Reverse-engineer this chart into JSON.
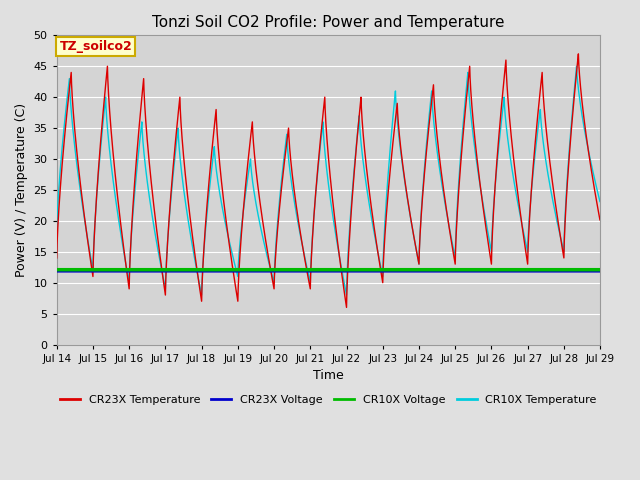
{
  "title": "Tonzi Soil CO2 Profile: Power and Temperature",
  "xlabel": "Time",
  "ylabel": "Power (V) / Temperature (C)",
  "ylim": [
    0,
    50
  ],
  "yticks": [
    0,
    5,
    10,
    15,
    20,
    25,
    30,
    35,
    40,
    45,
    50
  ],
  "n_days": 15,
  "xtick_labels": [
    "Jul 14",
    "Jul 15",
    "Jul 16",
    "Jul 17",
    "Jul 18",
    "Jul 19",
    "Jul 20",
    "Jul 21",
    "Jul 22",
    "Jul 23",
    "Jul 24",
    "Jul 25",
    "Jul 26",
    "Jul 27",
    "Jul 28",
    "Jul 29"
  ],
  "legend_box_label": "TZ_soilco2",
  "legend_box_color": "#ffffcc",
  "legend_box_edge": "#ccaa00",
  "bg_color": "#e0e0e0",
  "plot_bg_color": "#d4d4d4",
  "grid_color": "#ffffff",
  "cr23x_temp_color": "#dd0000",
  "cr23x_volt_color": "#0000cc",
  "cr10x_volt_color": "#00bb00",
  "cr10x_temp_color": "#00ccdd",
  "voltage_cr23x": 11.8,
  "voltage_cr10x": 12.1,
  "cr23x_peaks": [
    44,
    45,
    43,
    40,
    38,
    36,
    35,
    40,
    40,
    39,
    42,
    45,
    46,
    44,
    47,
    47
  ],
  "cr23x_troughs": [
    14,
    11,
    9,
    8,
    7,
    7,
    9,
    9,
    6,
    10,
    13,
    13,
    13,
    13,
    14,
    20
  ],
  "cr10x_peaks": [
    43,
    40,
    36,
    35,
    32,
    30,
    34,
    36,
    37,
    41,
    41,
    44,
    40,
    38,
    45,
    45
  ],
  "cr10x_troughs": [
    18,
    12,
    10,
    9,
    8,
    11,
    10,
    10,
    8,
    11,
    13,
    14,
    15,
    15,
    15,
    23
  ]
}
